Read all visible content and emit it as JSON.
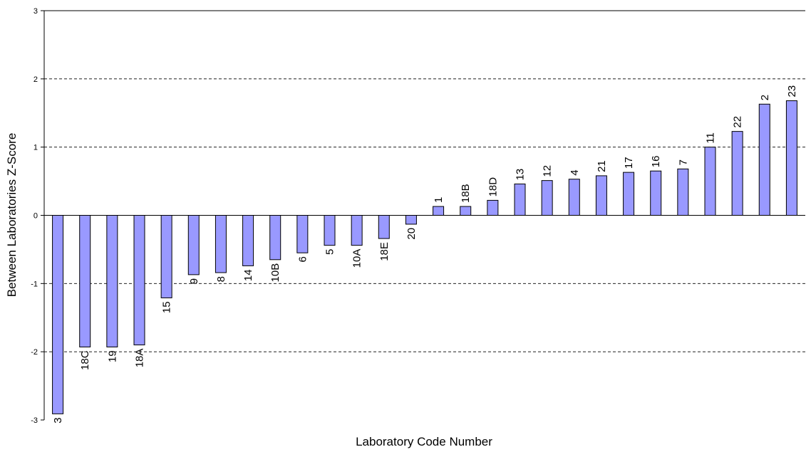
{
  "chart_data": {
    "type": "bar",
    "x_label": "Laboratory Code Number",
    "y_label": "Between Laboratories Z-Score",
    "categories": [
      "3",
      "18C",
      "19",
      "18A",
      "15",
      "9",
      "8",
      "14",
      "10B",
      "6",
      "5",
      "10A",
      "18E",
      "20",
      "1",
      "18B",
      "18D",
      "13",
      "12",
      "4",
      "21",
      "17",
      "16",
      "7",
      "11",
      "22",
      "2",
      "23"
    ],
    "values": [
      -2.91,
      -1.93,
      -1.93,
      -1.9,
      -1.21,
      -0.87,
      -0.84,
      -0.74,
      -0.65,
      -0.55,
      -0.44,
      -0.44,
      -0.34,
      -0.13,
      0.13,
      0.13,
      0.22,
      0.46,
      0.51,
      0.53,
      0.58,
      0.63,
      0.65,
      0.68,
      1.0,
      1.23,
      1.63,
      1.68
    ],
    "color": "#9999ff",
    "ylim": [
      -3,
      3
    ],
    "yticks": [
      -3,
      -2,
      -1,
      0,
      1,
      2,
      3
    ],
    "grid": true
  }
}
